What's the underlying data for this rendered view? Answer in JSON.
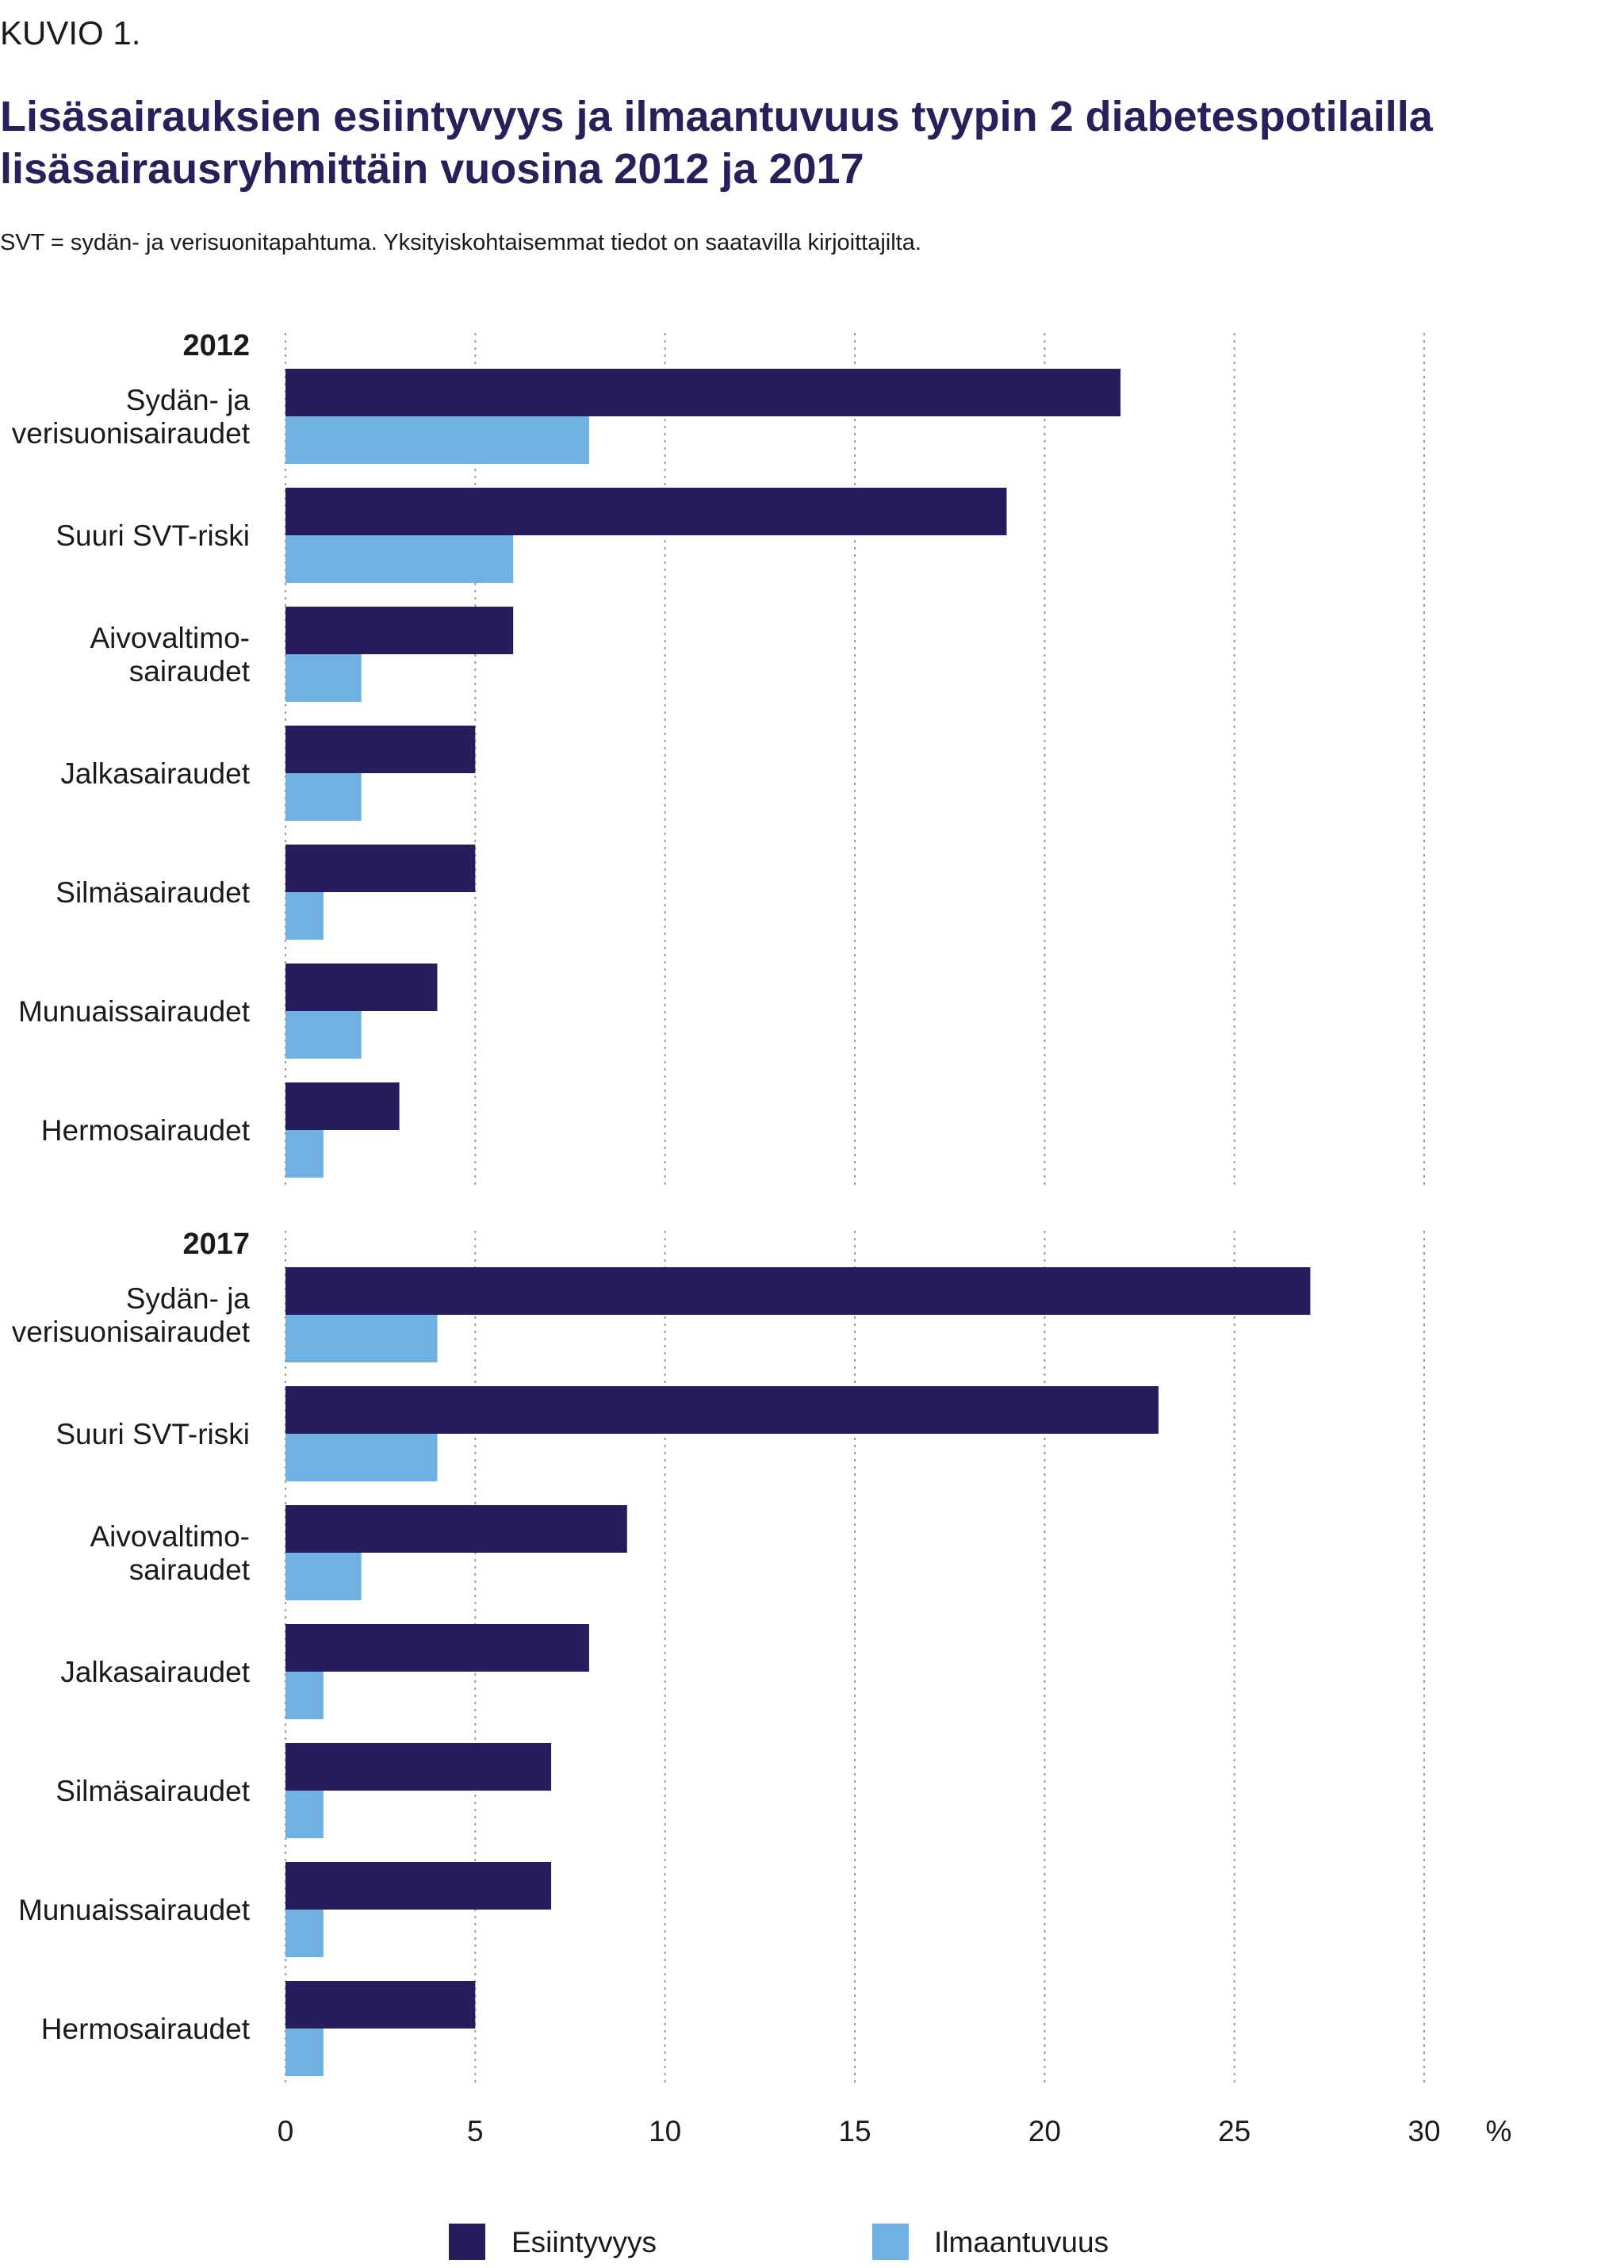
{
  "figure_label": "KUVIO 1.",
  "title": "Lisäsairauksien esiintyvyys ja ilmaantuvuus tyypin 2 diabetespotilailla lisäsairausryhmittäin vuosina 2012 ja 2017",
  "subtitle": "SVT = sydän- ja verisuonitapahtuma. Yksityiskohtaisemmat tiedot on saatavilla kirjoittajilta.",
  "colors": {
    "esiintyvyys": "#271d5d",
    "ilmaantuvuus": "#6eb1e2",
    "grid": "#9a9a9a"
  },
  "chart_data": {
    "type": "bar",
    "orientation": "horizontal",
    "xlim": [
      0,
      30
    ],
    "xticks": [
      "0",
      "5",
      "10",
      "15",
      "20",
      "25",
      "30"
    ],
    "unit": "%",
    "grid": true,
    "legend_position": "bottom",
    "series_names": [
      "Esiintyvyys",
      "Ilmaantuvuus"
    ],
    "groups": [
      {
        "label": "2012",
        "categories": [
          [
            "Sydän- ja",
            "verisuonisairaudet"
          ],
          [
            "Suuri SVT-riski"
          ],
          [
            "Aivovaltimo-",
            "sairaudet"
          ],
          [
            "Jalkasairaudet"
          ],
          [
            "Silmäsairaudet"
          ],
          [
            "Munuaissairaudet"
          ],
          [
            "Hermosairaudet"
          ]
        ],
        "esiintyvyys": [
          22,
          19,
          6,
          5,
          5,
          4,
          3
        ],
        "ilmaantuvuus": [
          8,
          6,
          2,
          2,
          1,
          2,
          1
        ]
      },
      {
        "label": "2017",
        "categories": [
          [
            "Sydän- ja",
            "verisuonisairaudet"
          ],
          [
            "Suuri SVT-riski"
          ],
          [
            "Aivovaltimo-",
            "sairaudet"
          ],
          [
            "Jalkasairaudet"
          ],
          [
            "Silmäsairaudet"
          ],
          [
            "Munuaissairaudet"
          ],
          [
            "Hermosairaudet"
          ]
        ],
        "esiintyvyys": [
          27,
          23,
          9,
          8,
          7,
          7,
          5
        ],
        "ilmaantuvuus": [
          4,
          4,
          2,
          1,
          1,
          1,
          1
        ]
      }
    ]
  }
}
